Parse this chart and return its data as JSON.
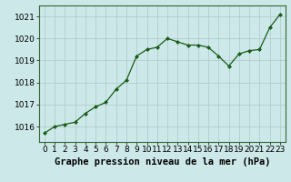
{
  "x": [
    0,
    1,
    2,
    3,
    4,
    5,
    6,
    7,
    8,
    9,
    10,
    11,
    12,
    13,
    14,
    15,
    16,
    17,
    18,
    19,
    20,
    21,
    22,
    23
  ],
  "y": [
    1015.7,
    1016.0,
    1016.1,
    1016.2,
    1016.6,
    1016.9,
    1017.1,
    1017.7,
    1018.1,
    1019.2,
    1019.5,
    1019.6,
    1020.0,
    1019.85,
    1019.7,
    1019.7,
    1019.6,
    1019.2,
    1018.75,
    1019.3,
    1019.45,
    1019.5,
    1020.5,
    1021.1
  ],
  "xlim": [
    -0.5,
    23.5
  ],
  "ylim": [
    1015.3,
    1021.5
  ],
  "yticks": [
    1016,
    1017,
    1018,
    1019,
    1020,
    1021
  ],
  "xticks": [
    0,
    1,
    2,
    3,
    4,
    5,
    6,
    7,
    8,
    9,
    10,
    11,
    12,
    13,
    14,
    15,
    16,
    17,
    18,
    19,
    20,
    21,
    22,
    23
  ],
  "line_color": "#1a5c1a",
  "marker": "D",
  "marker_size": 2.0,
  "line_width": 0.9,
  "bg_color": "#cce8e8",
  "grid_color": "#b0c8c8",
  "xlabel": "Graphe pression niveau de la mer (hPa)",
  "xlabel_fontsize": 7.5,
  "tick_fontsize": 6.5,
  "fig_bg": "#cce8e8"
}
